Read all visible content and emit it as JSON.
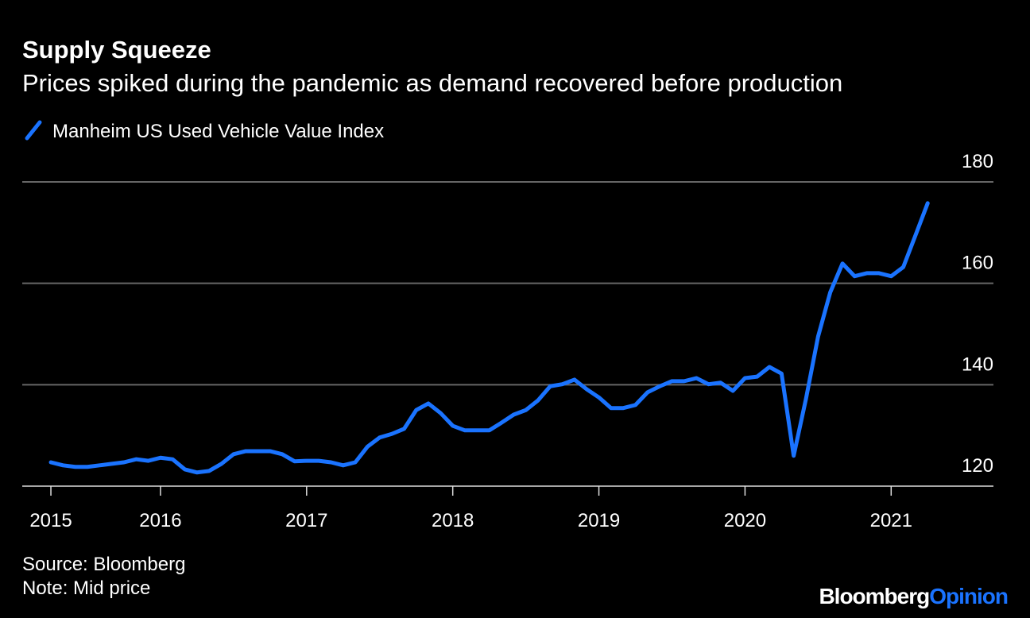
{
  "chart_data": {
    "type": "line",
    "title": "Supply Squeeze",
    "subtitle": "Prices spiked during the pandemic as demand recovered before production",
    "source": "Source: Bloomberg",
    "note": "Note: Mid price",
    "x": [
      2015.25,
      2015.333,
      2015.417,
      2015.5,
      2015.583,
      2015.667,
      2015.75,
      2015.833,
      2015.917,
      2016,
      2016.083,
      2016.167,
      2016.25,
      2016.333,
      2016.417,
      2016.5,
      2016.583,
      2016.667,
      2016.75,
      2016.833,
      2016.917,
      2017,
      2017.083,
      2017.167,
      2017.25,
      2017.333,
      2017.417,
      2017.5,
      2017.583,
      2017.667,
      2017.75,
      2017.833,
      2017.917,
      2018,
      2018.083,
      2018.167,
      2018.25,
      2018.333,
      2018.417,
      2018.5,
      2018.583,
      2018.667,
      2018.75,
      2018.833,
      2018.917,
      2019,
      2019.083,
      2019.167,
      2019.25,
      2019.333,
      2019.417,
      2019.5,
      2019.583,
      2019.667,
      2019.75,
      2019.833,
      2019.917,
      2020,
      2020.083,
      2020.167,
      2020.25,
      2020.333,
      2020.417,
      2020.5,
      2020.583,
      2020.667,
      2020.75,
      2020.833,
      2020.917,
      2021,
      2021.083,
      2021.167,
      2021.25
    ],
    "series": [
      {
        "name": "Manheim US Used Vehicle Value Index",
        "color": "#1a73ff",
        "values": [
          124.7,
          124.1,
          123.8,
          123.8,
          124.1,
          124.4,
          124.7,
          125.3,
          125.0,
          125.6,
          125.3,
          123.3,
          122.7,
          123.0,
          124.4,
          126.3,
          126.9,
          126.9,
          126.9,
          126.3,
          124.9,
          125.0,
          125.0,
          124.7,
          124.1,
          124.7,
          127.8,
          129.6,
          130.3,
          131.3,
          135.0,
          136.3,
          134.4,
          131.9,
          131.0,
          131.0,
          131.0,
          132.5,
          134.1,
          135.0,
          136.9,
          139.7,
          140.1,
          141.0,
          139.1,
          137.5,
          135.4,
          135.4,
          136.0,
          138.5,
          139.7,
          140.7,
          140.7,
          141.3,
          140.1,
          140.4,
          138.8,
          141.3,
          141.6,
          143.5,
          142.2,
          126.0,
          137.2,
          149.5,
          158.2,
          163.9,
          161.4,
          162.0,
          162.0,
          161.4,
          163.2,
          169.5,
          175.8
        ]
      }
    ],
    "xlim": [
      2015.054,
      2021.7
    ],
    "xticks": [
      {
        "value": 2015.25,
        "label": "2015"
      },
      2016,
      2017,
      2018,
      2019,
      2020,
      2021
    ],
    "ylim": [
      120,
      180
    ],
    "yticks": [
      120,
      140,
      160,
      180
    ],
    "grid": true
  },
  "brand": {
    "name": "Bloomberg",
    "section": "Opinion"
  }
}
